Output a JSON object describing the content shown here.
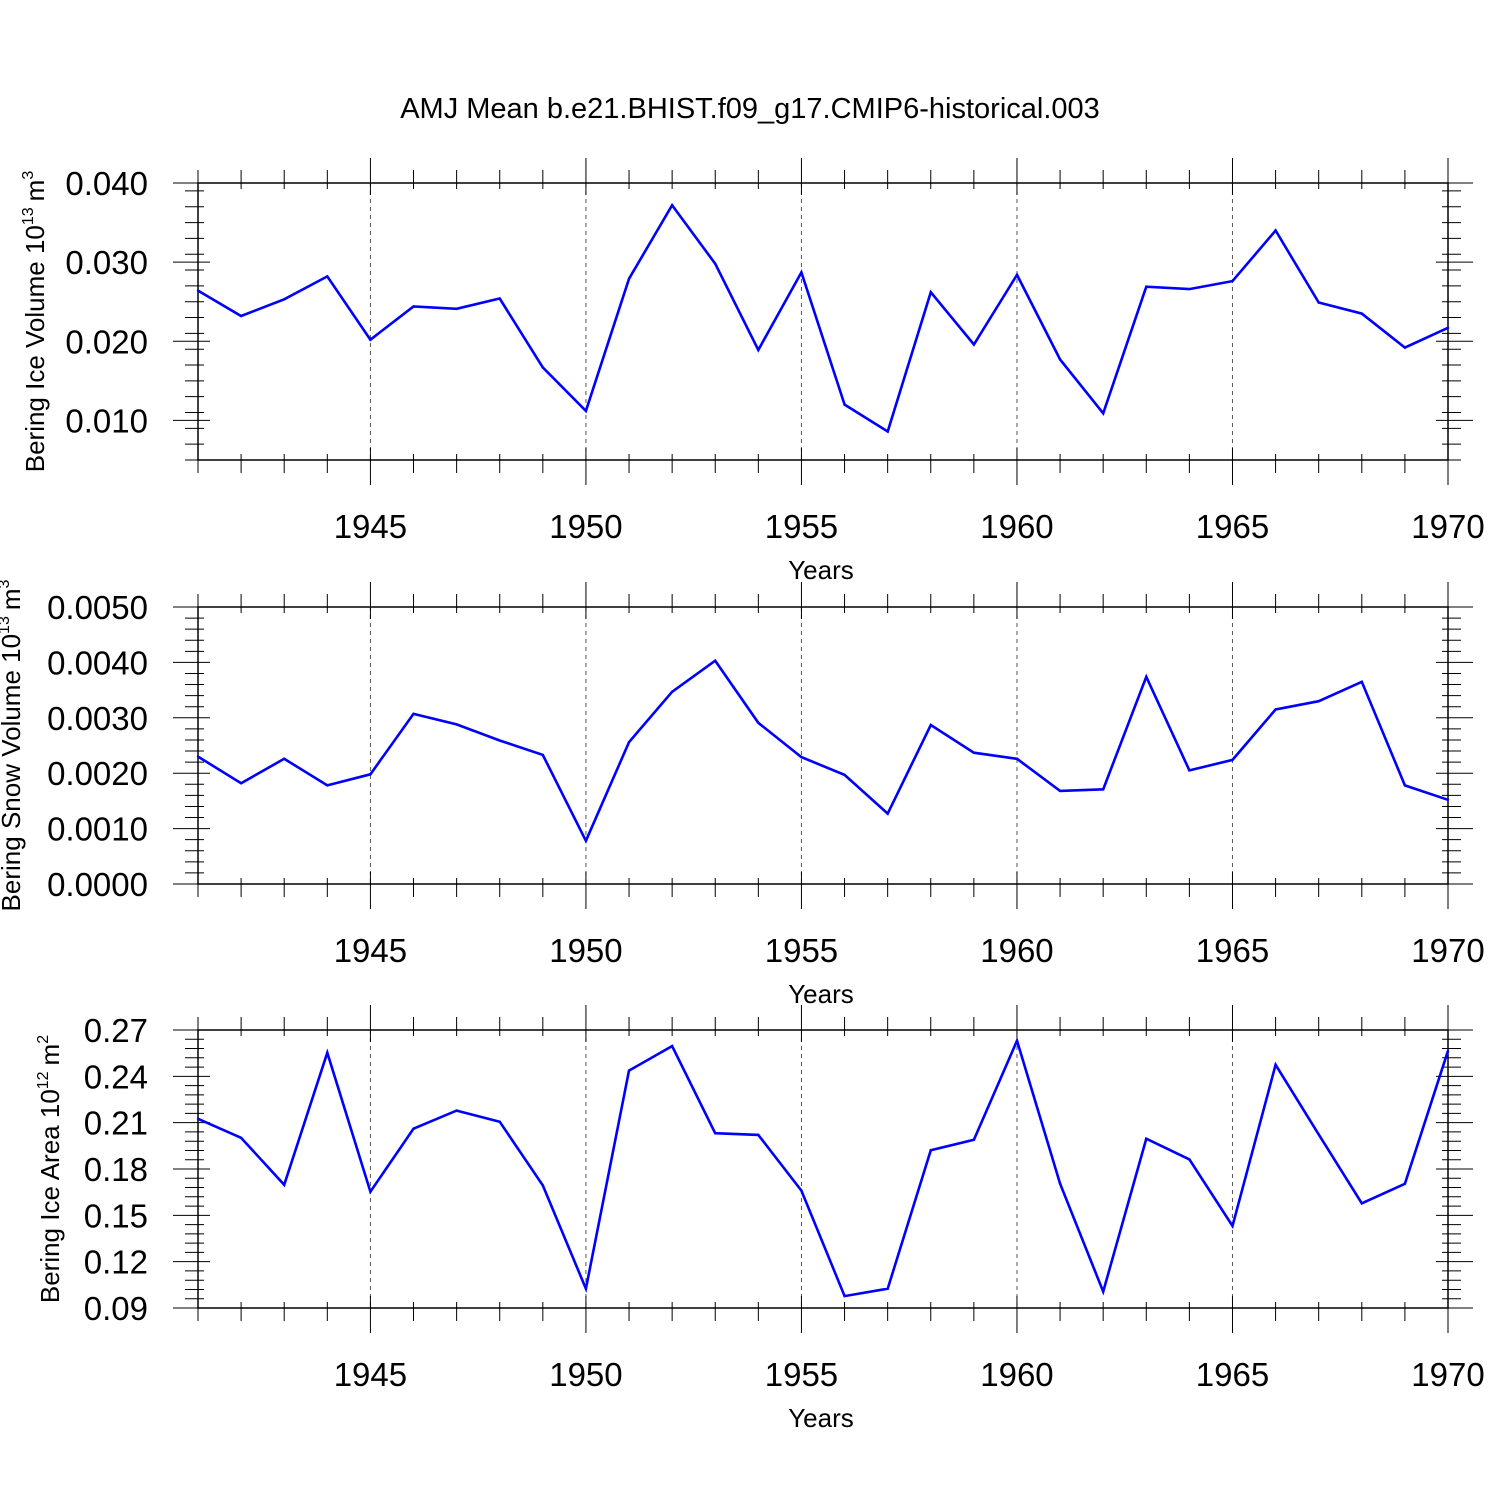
{
  "title": "AMJ Mean b.e21.BHIST.f09_g17.CMIP6-historical.003",
  "colors": {
    "line": "#0000ff",
    "axis": "#000000",
    "grid": "#555555"
  },
  "chart_data": [
    {
      "type": "line",
      "ylabel_text": "Bering Ice Volume 10",
      "ylabel_exp": "13",
      "ylabel_unit": "m",
      "ylabel_unit_exp": "3",
      "xlabel": "Years",
      "xlim": [
        1941,
        1970
      ],
      "ylim": [
        0.005,
        0.04
      ],
      "y_ticks": [
        0.01,
        0.02,
        0.03,
        0.04
      ],
      "y_tick_labels": [
        "0.010",
        "0.020",
        "0.030",
        "0.040"
      ],
      "x_ticks": [
        1945,
        1950,
        1955,
        1960,
        1965,
        1970
      ],
      "x_tick_labels": [
        "1945",
        "1950",
        "1955",
        "1960",
        "1965",
        "1970"
      ],
      "x": [
        1941,
        1942,
        1943,
        1944,
        1945,
        1946,
        1947,
        1948,
        1949,
        1950,
        1951,
        1952,
        1953,
        1954,
        1955,
        1956,
        1957,
        1958,
        1959,
        1960,
        1961,
        1962,
        1963,
        1964,
        1965,
        1966,
        1967,
        1968,
        1969,
        1970
      ],
      "values": [
        0.0264,
        0.0232,
        0.0253,
        0.0282,
        0.0202,
        0.0244,
        0.0241,
        0.0254,
        0.0167,
        0.0112,
        0.0279,
        0.0372,
        0.0298,
        0.0189,
        0.0287,
        0.012,
        0.0086,
        0.0262,
        0.0196,
        0.0284,
        0.0177,
        0.0109,
        0.0269,
        0.0266,
        0.0276,
        0.034,
        0.0249,
        0.0235,
        0.0192,
        0.0217
      ]
    },
    {
      "type": "line",
      "ylabel_text": "Bering Snow Volume 10",
      "ylabel_exp": "13",
      "ylabel_unit": "m",
      "ylabel_unit_exp": "3",
      "xlabel": "Years",
      "xlim": [
        1941,
        1970
      ],
      "ylim": [
        0.0,
        0.005
      ],
      "y_ticks": [
        0.0,
        0.001,
        0.002,
        0.003,
        0.004,
        0.005
      ],
      "y_tick_labels": [
        "0.0000",
        "0.0010",
        "0.0020",
        "0.0030",
        "0.0040",
        "0.0050"
      ],
      "x_ticks": [
        1945,
        1950,
        1955,
        1960,
        1965,
        1970
      ],
      "x_tick_labels": [
        "1945",
        "1950",
        "1955",
        "1960",
        "1965",
        "1970"
      ],
      "x": [
        1941,
        1942,
        1943,
        1944,
        1945,
        1946,
        1947,
        1948,
        1949,
        1950,
        1951,
        1952,
        1953,
        1954,
        1955,
        1956,
        1957,
        1958,
        1959,
        1960,
        1961,
        1962,
        1963,
        1964,
        1965,
        1966,
        1967,
        1968,
        1969,
        1970
      ],
      "values": [
        0.0023,
        0.00182,
        0.00226,
        0.00178,
        0.00198,
        0.00307,
        0.00288,
        0.00259,
        0.00233,
        0.00078,
        0.00256,
        0.00347,
        0.00403,
        0.00291,
        0.00229,
        0.00197,
        0.00127,
        0.00287,
        0.00237,
        0.00226,
        0.00168,
        0.00171,
        0.00374,
        0.00205,
        0.00224,
        0.00315,
        0.0033,
        0.00365,
        0.00178,
        0.00152
      ]
    },
    {
      "type": "line",
      "ylabel_text": "Bering Ice Area 10",
      "ylabel_exp": "12",
      "ylabel_unit": "m",
      "ylabel_unit_exp": "2",
      "xlabel": "Years",
      "xlim": [
        1941,
        1970
      ],
      "ylim": [
        0.09,
        0.27
      ],
      "y_ticks": [
        0.09,
        0.12,
        0.15,
        0.18,
        0.21,
        0.24,
        0.27
      ],
      "y_tick_labels": [
        "0.09",
        "0.12",
        "0.15",
        "0.18",
        "0.21",
        "0.24",
        "0.27"
      ],
      "x_ticks": [
        1945,
        1950,
        1955,
        1960,
        1965,
        1970
      ],
      "x_tick_labels": [
        "1945",
        "1950",
        "1955",
        "1960",
        "1965",
        "1970"
      ],
      "x": [
        1941,
        1942,
        1943,
        1944,
        1945,
        1946,
        1947,
        1948,
        1949,
        1950,
        1951,
        1952,
        1953,
        1954,
        1955,
        1956,
        1957,
        1958,
        1959,
        1960,
        1961,
        1962,
        1963,
        1964,
        1965,
        1966,
        1967,
        1968,
        1969,
        1970
      ],
      "values": [
        0.2125,
        0.2002,
        0.1698,
        0.2553,
        0.1653,
        0.2061,
        0.2178,
        0.2106,
        0.1694,
        0.1025,
        0.2437,
        0.2596,
        0.2032,
        0.2021,
        0.166,
        0.0977,
        0.1025,
        0.1922,
        0.1989,
        0.2631,
        0.1705,
        0.1006,
        0.1996,
        0.1862,
        0.1431,
        0.2475,
        0.2024,
        0.1578,
        0.1704,
        0.2565
      ]
    }
  ]
}
